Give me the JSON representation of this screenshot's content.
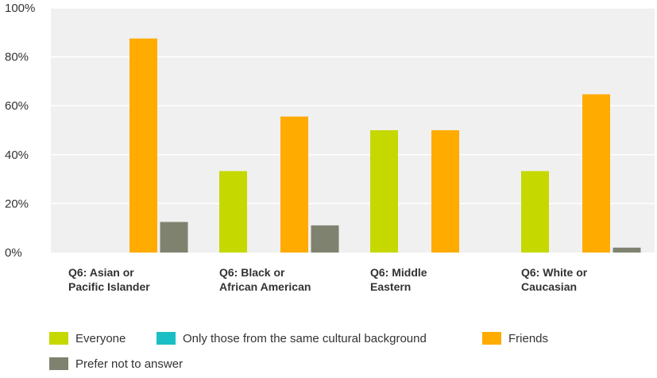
{
  "chart_data": {
    "type": "bar",
    "categories": [
      [
        "Q6: Asian or",
        "Pacific Islander"
      ],
      [
        "Q6: Black or",
        "African American"
      ],
      [
        "Q6: Middle",
        "Eastern"
      ],
      [
        "Q6: White or",
        "Caucasian"
      ]
    ],
    "series": [
      {
        "name": "Everyone",
        "color": "#c5d800",
        "values": [
          0,
          33.3,
          50,
          33.3
        ]
      },
      {
        "name": "Only those from the same cultural background",
        "color": "#1abfc4",
        "values": [
          0,
          0,
          0,
          0
        ]
      },
      {
        "name": "Friends",
        "color": "#ffab00",
        "values": [
          87.5,
          55.6,
          50,
          64.7
        ]
      },
      {
        "name": "Prefer not to answer",
        "color": "#7f826f",
        "values": [
          12.5,
          11.1,
          0,
          2
        ]
      }
    ],
    "ylim": [
      0,
      100
    ],
    "yticks": [
      "0%",
      "20%",
      "40%",
      "60%",
      "80%",
      "100%"
    ],
    "grid": true,
    "plot_background": "#f0f0f0",
    "legend_position": "bottom"
  }
}
